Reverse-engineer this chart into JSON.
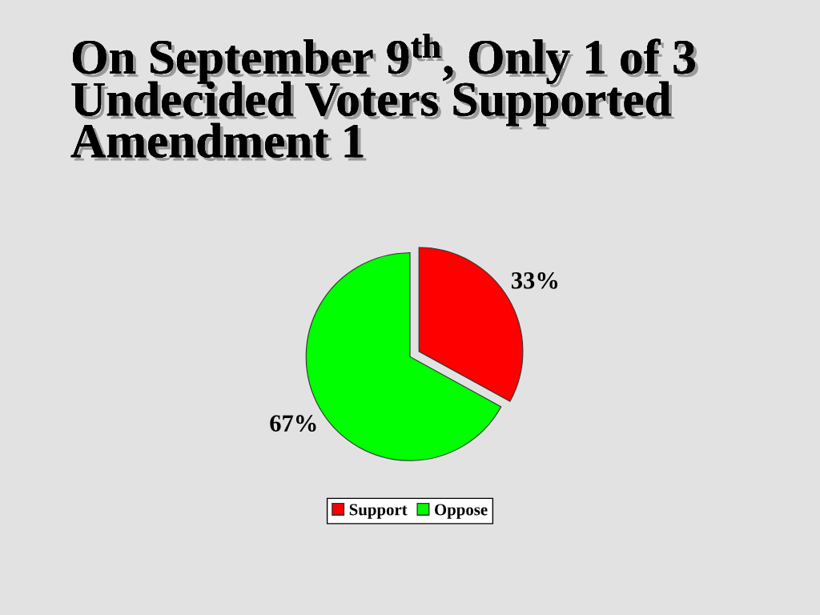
{
  "chart_data": {
    "type": "pie",
    "title": "On September 9$^{th}$, Only 1 of 3\nUndecided Voters Supported\nAmendment 1",
    "categories": [
      "Support",
      "Oppose"
    ],
    "values": [
      33,
      67
    ],
    "colors": [
      "#ff0000",
      "#00ff00"
    ],
    "value_labels": [
      "33%",
      "67%"
    ],
    "legend": "bottom"
  }
}
